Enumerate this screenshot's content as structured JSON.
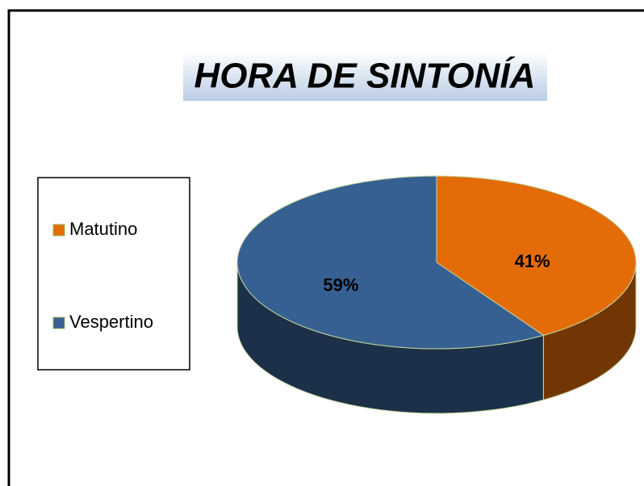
{
  "chart_data": {
    "type": "pie",
    "title": "HORA DE SINTONÍA",
    "categories": [
      "Matutino",
      "Vespertino"
    ],
    "values": [
      41,
      59
    ],
    "value_labels": [
      "41%",
      "59%"
    ],
    "colors": [
      "#e36c09",
      "#376092"
    ],
    "legend": "left"
  }
}
